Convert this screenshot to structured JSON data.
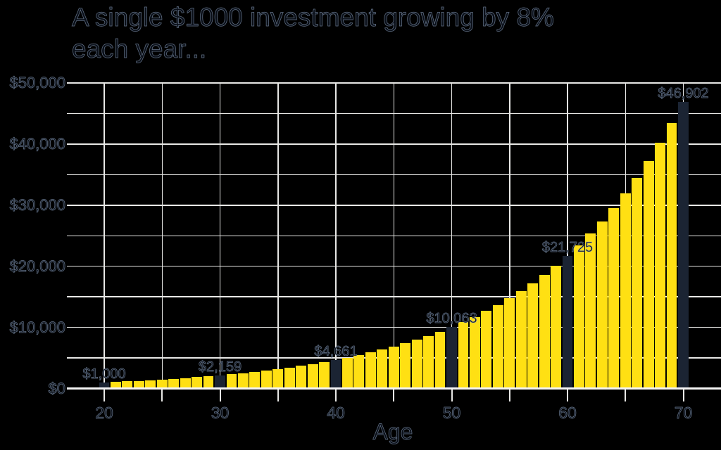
{
  "title": {
    "line1": "A single $1000 investment growing by 8%",
    "line2": "each year..."
  },
  "chart_data": {
    "type": "bar",
    "title": "A single $1000 investment growing by 8% each year...",
    "xlabel": "Age",
    "ylabel": "",
    "ylim": [
      0,
      50000
    ],
    "grid": "on",
    "y_gridline_interval": 5000,
    "x_gridline_interval_years": 5,
    "x": [
      20,
      21,
      22,
      23,
      24,
      25,
      26,
      27,
      28,
      29,
      30,
      31,
      32,
      33,
      34,
      35,
      36,
      37,
      38,
      39,
      40,
      41,
      42,
      43,
      44,
      45,
      46,
      47,
      48,
      49,
      50,
      51,
      52,
      53,
      54,
      55,
      56,
      57,
      58,
      59,
      60,
      61,
      62,
      63,
      64,
      65,
      66,
      67,
      68,
      69,
      70
    ],
    "values": [
      1000,
      1080,
      1166,
      1260,
      1360,
      1469,
      1587,
      1714,
      1851,
      1999,
      2159,
      2332,
      2518,
      2720,
      2937,
      3172,
      3426,
      3700,
      3996,
      4316,
      4661,
      5034,
      5437,
      5871,
      6341,
      6848,
      7396,
      7988,
      8627,
      9317,
      10063,
      10868,
      11737,
      12676,
      13690,
      14785,
      15968,
      17246,
      18625,
      20115,
      21725,
      23462,
      25339,
      27367,
      29556,
      31920,
      34474,
      37232,
      40211,
      43427,
      46902
    ],
    "highlighted_ages": [
      20,
      30,
      40,
      50,
      60,
      70
    ],
    "y_tick_labels": [
      {
        "value": 0,
        "label": "$0"
      },
      {
        "value": 10000,
        "label": "$10,000"
      },
      {
        "value": 20000,
        "label": "$20,000"
      },
      {
        "value": 30000,
        "label": "$30,000"
      },
      {
        "value": 40000,
        "label": "$40,000"
      },
      {
        "value": 50000,
        "label": "$50,000"
      }
    ],
    "x_tick_labels": [
      {
        "age": 20,
        "label": "20"
      },
      {
        "age": 30,
        "label": "30"
      },
      {
        "age": 40,
        "label": "40"
      },
      {
        "age": 50,
        "label": "50"
      },
      {
        "age": 60,
        "label": "60"
      },
      {
        "age": 70,
        "label": "70"
      }
    ],
    "annotations": [
      {
        "age": 20,
        "label": "$1,000"
      },
      {
        "age": 30,
        "label": "$2,159"
      },
      {
        "age": 40,
        "label": "$4,661"
      },
      {
        "age": 50,
        "label": "$10,063"
      },
      {
        "age": 60,
        "label": "$21,725"
      },
      {
        "age": 70,
        "label": "$46,902"
      }
    ],
    "colors": {
      "background": "#000000",
      "bar": "#FFE013",
      "bar_highlight": "#1B2433",
      "gridline": "#E8E8E6",
      "axis_line": "#F5F5F5",
      "text_fill": "#0A0F18",
      "text_halo": "#94A8C6"
    }
  }
}
